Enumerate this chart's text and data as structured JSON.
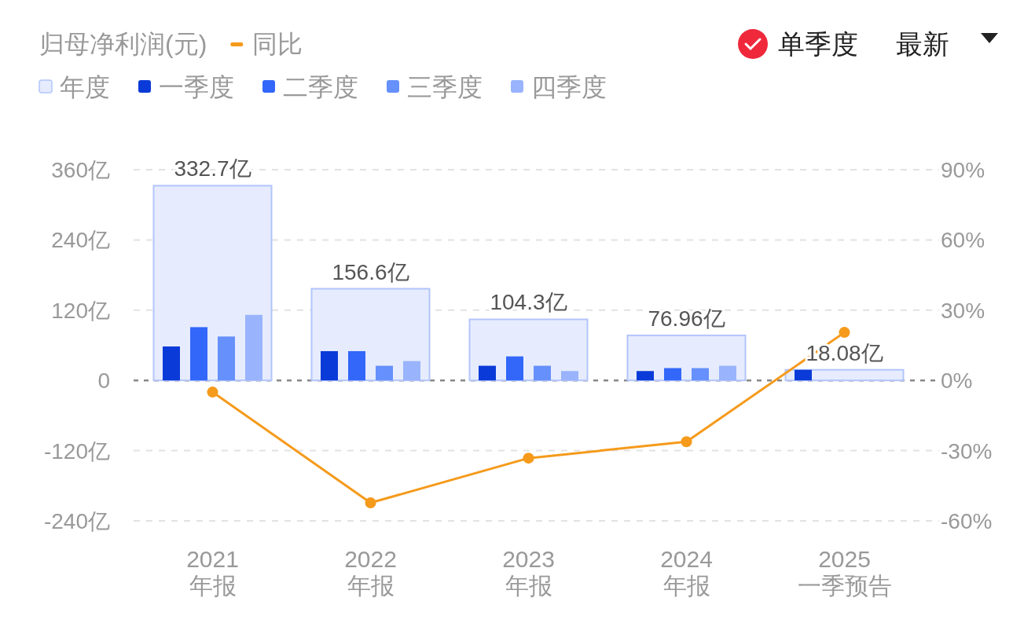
{
  "chart_data": {
    "type": "bar",
    "title": "归母净利润(元)",
    "categories": [
      "2021\n年报",
      "2022\n年报",
      "2023\n年报",
      "2024\n年报",
      "2025\n一季预告"
    ],
    "series": [
      {
        "name": "年度",
        "color": "#e6ecfd",
        "values": [
          332.7,
          156.6,
          104.3,
          76.96,
          18.08
        ],
        "value_labels": [
          "332.7亿",
          "156.6亿",
          "104.3亿",
          "76.96亿",
          "18.08亿"
        ]
      },
      {
        "name": "一季度",
        "color": "#0a3bd8",
        "values": [
          58,
          50,
          25,
          16,
          18.08
        ]
      },
      {
        "name": "二季度",
        "color": "#3367fa",
        "values": [
          91,
          50,
          41,
          21,
          null
        ]
      },
      {
        "name": "三季度",
        "color": "#6690fb",
        "values": [
          75,
          25,
          25,
          21,
          null
        ]
      },
      {
        "name": "四季度",
        "color": "#99b3fc",
        "values": [
          112,
          33,
          16,
          25,
          null
        ]
      },
      {
        "name": "同比",
        "color": "#f59a1b",
        "type": "line",
        "axis": "y2",
        "values": [
          -5,
          -52.3,
          -33.2,
          -26.2,
          20.5
        ]
      }
    ],
    "ylim": [
      -240,
      360
    ],
    "yticks": [
      {
        "value": -240,
        "label": "-240亿"
      },
      {
        "value": -120,
        "label": "-120亿"
      },
      {
        "value": 0,
        "label": "0"
      },
      {
        "value": 120,
        "label": "120亿"
      },
      {
        "value": 240,
        "label": "240亿"
      },
      {
        "value": 360,
        "label": "360亿"
      }
    ],
    "y2lim": [
      -60,
      90
    ],
    "y2ticks": [
      {
        "value": -60,
        "label": "-60%"
      },
      {
        "value": -30,
        "label": "-30%"
      },
      {
        "value": 0,
        "label": "0%"
      },
      {
        "value": 30,
        "label": "30%"
      },
      {
        "value": 60,
        "label": "60%"
      },
      {
        "value": 90,
        "label": "90%"
      }
    ],
    "ref_lines": [
      {
        "axis": "y",
        "value": 0,
        "color": "#888888",
        "line_style": "dashed"
      }
    ],
    "grid": "y",
    "legend": "top left",
    "marker": "circle",
    "annotations": [
      "单季度",
      "最新"
    ]
  }
}
